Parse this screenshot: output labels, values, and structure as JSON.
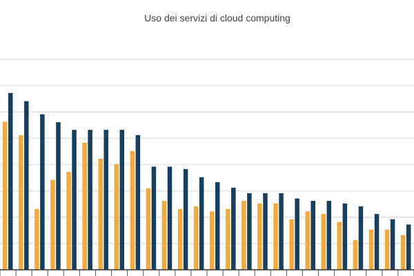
{
  "chart_data": {
    "type": "bar",
    "title": "Uso dei servizi di cloud computing",
    "xlabel": "",
    "ylabel": "",
    "y_units_note_visible": false,
    "ylim": [
      0,
      8
    ],
    "grid": true,
    "categories": [
      "",
      "",
      "",
      "",
      "",
      "",
      "",
      "",
      "",
      "",
      "",
      "",
      "",
      "",
      "",
      "",
      "",
      "",
      "",
      "",
      "",
      "",
      "",
      "",
      "",
      ""
    ],
    "series": [
      {
        "color": "#f5a93b",
        "values": [
          5.63,
          5.12,
          2.31,
          3.42,
          3.72,
          4.83,
          4.22,
          4.02,
          4.51,
          3.1,
          2.62,
          2.31,
          2.41,
          2.22,
          2.31,
          2.62,
          2.52,
          2.52,
          1.92,
          2.22,
          2.12,
          1.82,
          1.13,
          1.53,
          1.53,
          1.32
        ]
      },
      {
        "color": "#173f5f",
        "values": [
          6.72,
          6.41,
          5.91,
          5.61,
          5.32,
          5.32,
          5.32,
          5.32,
          5.12,
          3.92,
          3.92,
          3.83,
          3.52,
          3.33,
          3.12,
          2.91,
          2.91,
          2.91,
          2.71,
          2.62,
          2.62,
          2.52,
          2.41,
          2.12,
          1.92,
          1.72
        ]
      }
    ]
  }
}
